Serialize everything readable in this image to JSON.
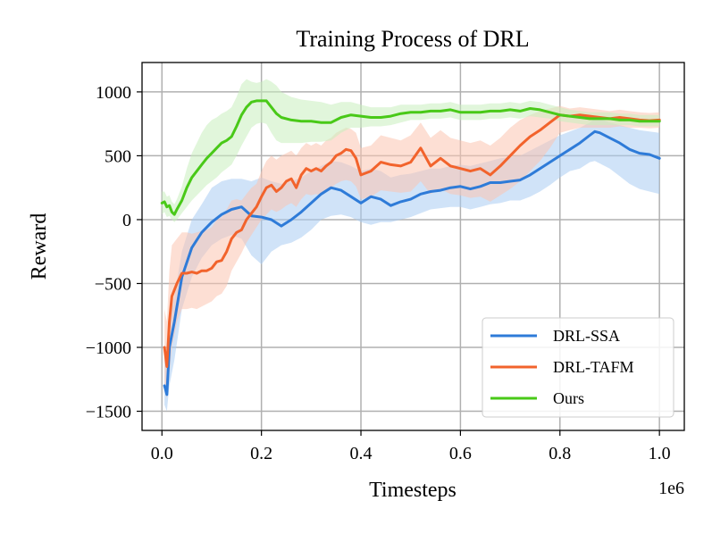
{
  "chart_data": {
    "type": "line",
    "title": "Training Process of DRL",
    "xlabel": "Timesteps",
    "ylabel": "Reward",
    "x_offset_label": "1e6",
    "xlim": [
      -0.04,
      1.05
    ],
    "ylim": [
      -1650,
      1230
    ],
    "xticks": [
      0.0,
      0.2,
      0.4,
      0.6,
      0.8,
      1.0
    ],
    "xtick_labels": [
      "0.0",
      "0.2",
      "0.4",
      "0.6",
      "0.8",
      "1.0"
    ],
    "yticks": [
      -1500,
      -1000,
      -500,
      0,
      500,
      1000
    ],
    "ytick_labels": [
      "−1500",
      "−1000",
      "−500",
      "0",
      "500",
      "1000"
    ],
    "grid": true,
    "legend_position": "lower-right",
    "series": [
      {
        "name": "DRL-SSA",
        "color": "#2e7bd8",
        "band_color": "#a9ccf2",
        "x": [
          0.005,
          0.01,
          0.015,
          0.025,
          0.04,
          0.06,
          0.08,
          0.1,
          0.12,
          0.14,
          0.16,
          0.18,
          0.2,
          0.22,
          0.24,
          0.26,
          0.28,
          0.3,
          0.32,
          0.34,
          0.36,
          0.38,
          0.4,
          0.42,
          0.44,
          0.46,
          0.48,
          0.5,
          0.52,
          0.54,
          0.56,
          0.58,
          0.6,
          0.62,
          0.64,
          0.66,
          0.68,
          0.7,
          0.72,
          0.74,
          0.76,
          0.78,
          0.8,
          0.82,
          0.84,
          0.86,
          0.87,
          0.88,
          0.9,
          0.92,
          0.94,
          0.96,
          0.98,
          1.0
        ],
        "y": [
          -1300,
          -1370,
          -1000,
          -800,
          -450,
          -220,
          -100,
          -20,
          40,
          80,
          100,
          30,
          20,
          0,
          -50,
          0,
          60,
          130,
          200,
          250,
          230,
          180,
          130,
          180,
          160,
          110,
          140,
          160,
          200,
          220,
          230,
          250,
          260,
          240,
          260,
          290,
          290,
          300,
          310,
          350,
          400,
          450,
          500,
          550,
          600,
          660,
          690,
          680,
          640,
          600,
          550,
          520,
          510,
          480
        ],
        "lower": [
          -1450,
          -1500,
          -1300,
          -1100,
          -700,
          -450,
          -300,
          -200,
          -150,
          -120,
          -150,
          -280,
          -350,
          -250,
          -200,
          -180,
          -140,
          -80,
          0,
          30,
          40,
          20,
          -20,
          -40,
          -20,
          -20,
          0,
          20,
          50,
          80,
          90,
          100,
          100,
          80,
          100,
          120,
          130,
          150,
          150,
          180,
          220,
          270,
          330,
          380,
          400,
          450,
          460,
          440,
          400,
          340,
          280,
          240,
          220,
          200
        ],
        "upper": [
          -1000,
          -1100,
          -800,
          -600,
          -250,
          0,
          120,
          250,
          300,
          320,
          320,
          300,
          330,
          300,
          280,
          300,
          330,
          380,
          420,
          460,
          450,
          420,
          380,
          400,
          380,
          330,
          350,
          360,
          380,
          400,
          400,
          420,
          430,
          420,
          440,
          460,
          480,
          490,
          500,
          540,
          580,
          620,
          660,
          690,
          720,
          760,
          790,
          790,
          760,
          740,
          720,
          700,
          690,
          680
        ]
      },
      {
        "name": "DRL-TAFM",
        "color": "#f2632c",
        "band_color": "#fbc4b0",
        "x": [
          0.005,
          0.01,
          0.015,
          0.02,
          0.03,
          0.04,
          0.05,
          0.06,
          0.07,
          0.08,
          0.09,
          0.1,
          0.11,
          0.12,
          0.13,
          0.14,
          0.15,
          0.16,
          0.17,
          0.18,
          0.19,
          0.2,
          0.21,
          0.22,
          0.23,
          0.24,
          0.25,
          0.26,
          0.27,
          0.28,
          0.29,
          0.3,
          0.31,
          0.32,
          0.33,
          0.34,
          0.35,
          0.36,
          0.37,
          0.38,
          0.39,
          0.4,
          0.42,
          0.44,
          0.46,
          0.48,
          0.5,
          0.52,
          0.54,
          0.56,
          0.58,
          0.6,
          0.62,
          0.64,
          0.66,
          0.68,
          0.7,
          0.72,
          0.74,
          0.76,
          0.78,
          0.8,
          0.82,
          0.84,
          0.86,
          0.88,
          0.9,
          0.92,
          0.94,
          0.96,
          0.98,
          1.0
        ],
        "y": [
          -1000,
          -1150,
          -800,
          -600,
          -500,
          -420,
          -420,
          -410,
          -420,
          -400,
          -400,
          -380,
          -330,
          -320,
          -250,
          -150,
          -100,
          -80,
          0,
          50,
          100,
          180,
          250,
          270,
          220,
          250,
          300,
          320,
          250,
          350,
          400,
          380,
          400,
          380,
          420,
          450,
          500,
          520,
          550,
          540,
          480,
          350,
          380,
          450,
          430,
          420,
          450,
          560,
          420,
          480,
          420,
          400,
          380,
          400,
          350,
          420,
          500,
          580,
          650,
          700,
          760,
          820,
          810,
          820,
          810,
          800,
          790,
          800,
          790,
          780,
          775,
          780
        ],
        "lower": [
          -1300,
          -1400,
          -1200,
          -1000,
          -800,
          -700,
          -700,
          -690,
          -700,
          -680,
          -660,
          -640,
          -600,
          -580,
          -520,
          -400,
          -330,
          -260,
          -180,
          -120,
          -60,
          0,
          40,
          80,
          60,
          80,
          110,
          130,
          100,
          160,
          200,
          190,
          200,
          190,
          220,
          250,
          280,
          300,
          310,
          300,
          260,
          160,
          180,
          230,
          220,
          210,
          220,
          300,
          200,
          240,
          200,
          190,
          170,
          180,
          140,
          190,
          240,
          300,
          380,
          460,
          560,
          680,
          700,
          720,
          720,
          720,
          720,
          730,
          720,
          720,
          715,
          720
        ],
        "upper": [
          -700,
          -800,
          -400,
          -200,
          -150,
          -100,
          -100,
          -110,
          -100,
          -90,
          -80,
          -60,
          0,
          20,
          80,
          150,
          160,
          150,
          200,
          250,
          280,
          380,
          460,
          500,
          470,
          500,
          520,
          540,
          500,
          560,
          600,
          580,
          600,
          580,
          620,
          640,
          680,
          700,
          720,
          710,
          680,
          560,
          580,
          660,
          640,
          620,
          660,
          760,
          640,
          700,
          640,
          620,
          600,
          620,
          580,
          640,
          720,
          780,
          820,
          850,
          870,
          890,
          870,
          880,
          870,
          860,
          850,
          860,
          850,
          840,
          835,
          840
        ]
      },
      {
        "name": "Ours",
        "color": "#49c918",
        "band_color": "#c9eebd",
        "x": [
          0.0,
          0.005,
          0.01,
          0.015,
          0.02,
          0.025,
          0.03,
          0.04,
          0.05,
          0.06,
          0.07,
          0.08,
          0.09,
          0.1,
          0.11,
          0.12,
          0.13,
          0.14,
          0.15,
          0.16,
          0.17,
          0.18,
          0.19,
          0.2,
          0.21,
          0.22,
          0.23,
          0.24,
          0.26,
          0.28,
          0.3,
          0.32,
          0.34,
          0.36,
          0.38,
          0.4,
          0.42,
          0.44,
          0.46,
          0.48,
          0.5,
          0.52,
          0.54,
          0.56,
          0.58,
          0.6,
          0.62,
          0.64,
          0.66,
          0.68,
          0.7,
          0.72,
          0.74,
          0.76,
          0.78,
          0.8,
          0.82,
          0.84,
          0.86,
          0.88,
          0.9,
          0.92,
          0.94,
          0.96,
          0.98,
          1.0
        ],
        "y": [
          130,
          140,
          100,
          110,
          60,
          40,
          80,
          150,
          250,
          330,
          380,
          430,
          480,
          520,
          560,
          600,
          620,
          650,
          730,
          820,
          880,
          920,
          930,
          930,
          930,
          880,
          830,
          800,
          780,
          770,
          770,
          760,
          760,
          800,
          820,
          810,
          800,
          800,
          810,
          830,
          840,
          840,
          850,
          850,
          860,
          840,
          840,
          840,
          850,
          850,
          860,
          850,
          870,
          860,
          840,
          820,
          810,
          800,
          790,
          790,
          790,
          780,
          780,
          770,
          770,
          770
        ],
        "lower": [
          40,
          60,
          20,
          30,
          0,
          -20,
          0,
          50,
          100,
          150,
          190,
          230,
          270,
          300,
          330,
          370,
          400,
          430,
          500,
          580,
          650,
          720,
          750,
          760,
          750,
          680,
          620,
          600,
          600,
          600,
          610,
          610,
          620,
          680,
          720,
          720,
          730,
          730,
          740,
          760,
          780,
          780,
          790,
          790,
          800,
          780,
          780,
          780,
          790,
          790,
          800,
          790,
          810,
          800,
          790,
          770,
          760,
          750,
          740,
          740,
          740,
          740,
          740,
          730,
          730,
          730
        ],
        "upper": [
          220,
          220,
          180,
          190,
          140,
          120,
          160,
          260,
          400,
          520,
          600,
          680,
          740,
          780,
          800,
          830,
          850,
          880,
          960,
          1060,
          1100,
          1080,
          1070,
          1080,
          1100,
          1080,
          1050,
          1000,
          960,
          940,
          930,
          920,
          900,
          920,
          920,
          900,
          880,
          880,
          880,
          900,
          900,
          900,
          910,
          910,
          920,
          900,
          900,
          900,
          910,
          910,
          920,
          910,
          930,
          920,
          900,
          880,
          860,
          850,
          840,
          840,
          840,
          830,
          830,
          820,
          820,
          820
        ]
      }
    ]
  }
}
